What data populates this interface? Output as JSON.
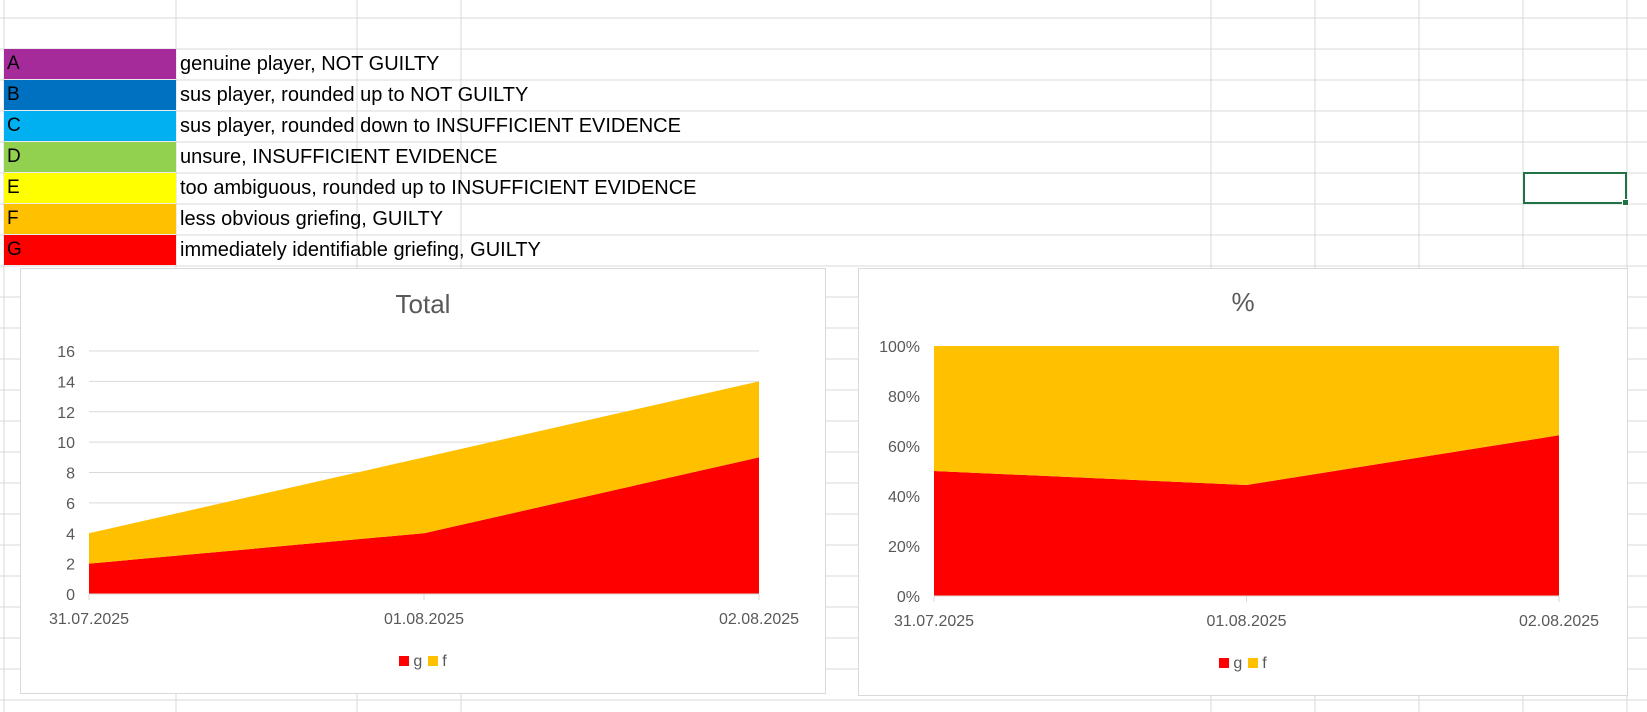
{
  "legend_rows": [
    {
      "letter": "A",
      "color": "#a52a9a",
      "text": "genuine player, NOT GUILTY"
    },
    {
      "letter": "B",
      "color": "#0070c0",
      "text": "sus player, rounded up to NOT GUILTY"
    },
    {
      "letter": "C",
      "color": "#00b0f0",
      "text": "sus player, rounded down to INSUFFICIENT EVIDENCE"
    },
    {
      "letter": "D",
      "color": "#92d050",
      "text": "unsure, INSUFFICIENT EVIDENCE"
    },
    {
      "letter": "E",
      "color": "#ffff00",
      "text": "too ambiguous, rounded up to INSUFFICIENT EVIDENCE"
    },
    {
      "letter": "F",
      "color": "#ffc000",
      "text": "less obvious griefing, GUILTY"
    },
    {
      "letter": "G",
      "color": "#ff0000",
      "text": "immediately identifiable griefing, GUILTY"
    }
  ],
  "chart_data": [
    {
      "type": "area",
      "stacked": true,
      "title": "Total",
      "categories": [
        "31.07.2025",
        "01.08.2025",
        "02.08.2025"
      ],
      "series": [
        {
          "name": "g",
          "color": "#ff0000",
          "values": [
            2,
            4,
            9
          ]
        },
        {
          "name": "f",
          "color": "#ffc000",
          "values": [
            2,
            5,
            5
          ]
        }
      ],
      "ylim": [
        0,
        16
      ],
      "yticks": [
        0,
        2,
        4,
        6,
        8,
        10,
        12,
        14,
        16
      ],
      "grid": true,
      "legend": "bottom"
    },
    {
      "type": "area",
      "stacked": true,
      "percent": true,
      "title": "%",
      "categories": [
        "31.07.2025",
        "01.08.2025",
        "02.08.2025"
      ],
      "series": [
        {
          "name": "g",
          "color": "#ff0000",
          "values": [
            50,
            44.4,
            64.3
          ]
        },
        {
          "name": "f",
          "color": "#ffc000",
          "values": [
            50,
            55.6,
            35.7
          ]
        }
      ],
      "ylim": [
        0,
        100
      ],
      "yticks": [
        "0%",
        "20%",
        "40%",
        "60%",
        "80%",
        "100%"
      ],
      "grid": false,
      "legend": "bottom"
    }
  ]
}
